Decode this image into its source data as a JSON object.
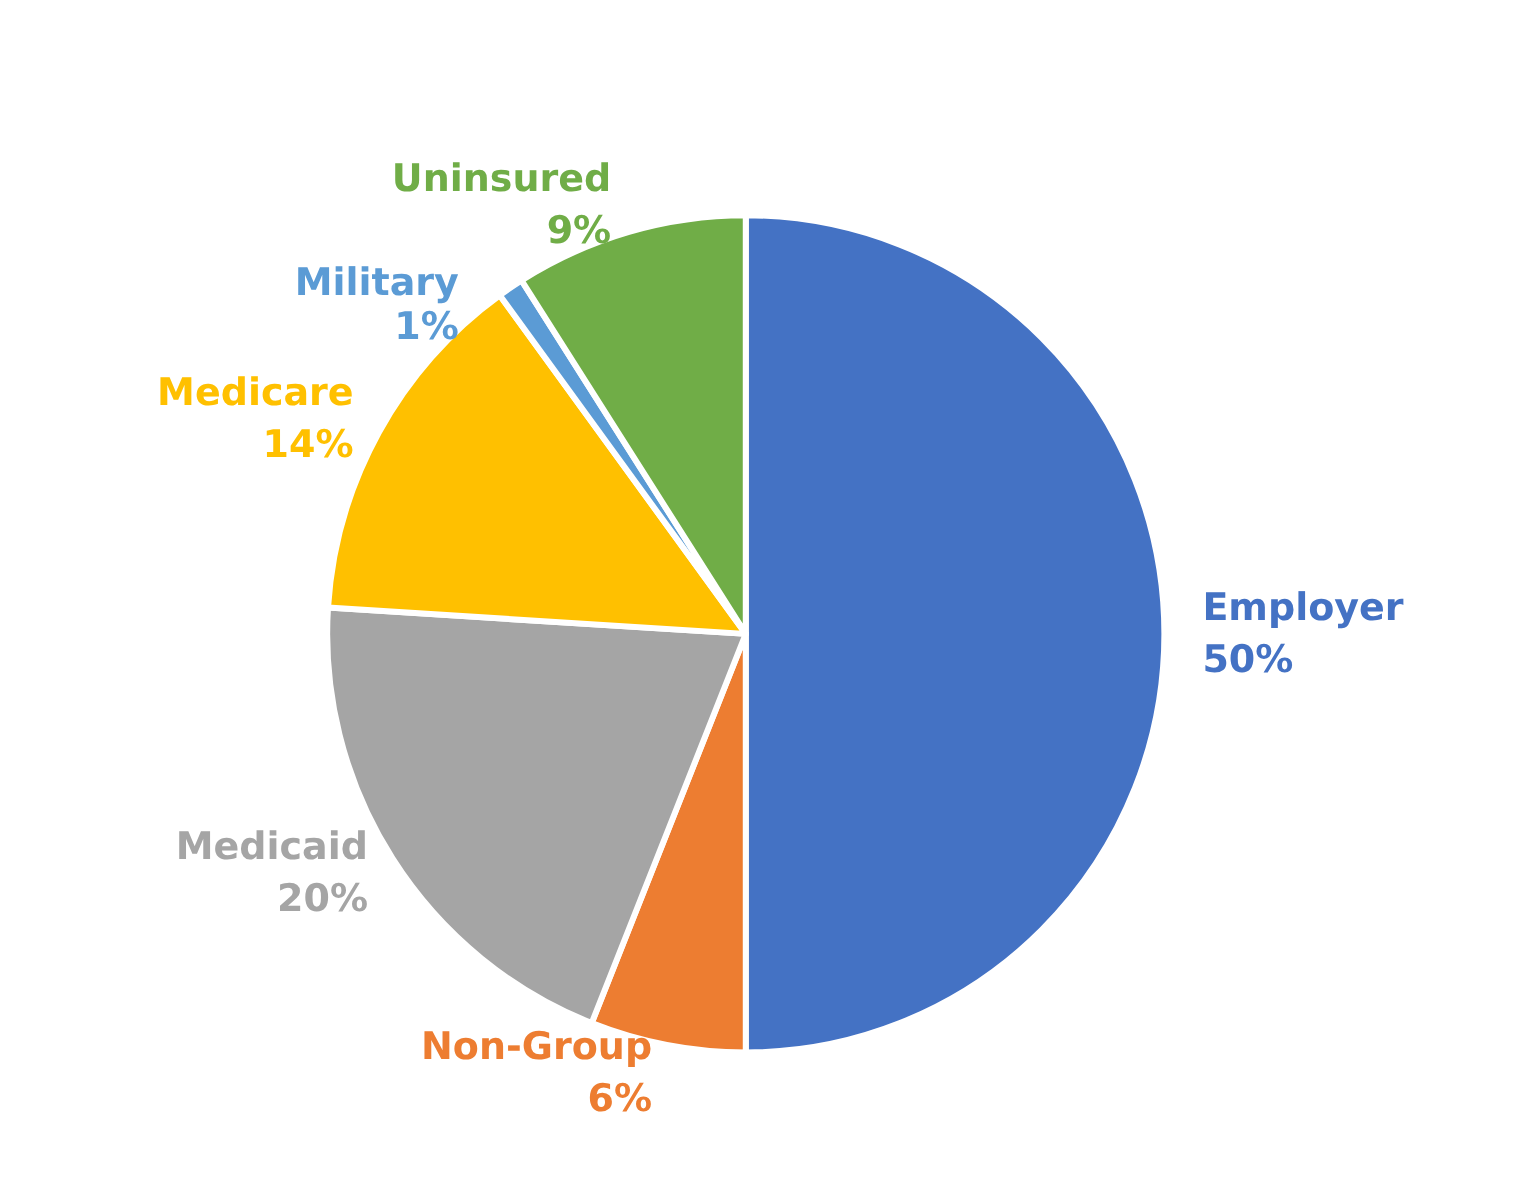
{
  "chart_data": {
    "type": "pie",
    "categories": [
      "Employer",
      "Non-Group",
      "Medicaid",
      "Medicare",
      "Military",
      "Uninsured"
    ],
    "values": [
      50,
      6,
      20,
      14,
      1,
      9
    ],
    "value_labels": [
      "50%",
      "6%",
      "20%",
      "14%",
      "1%",
      "9%"
    ],
    "colors": [
      "#4472c4",
      "#ed7d31",
      "#a5a5a5",
      "#ffc000",
      "#5b9bd5",
      "#70ad47"
    ],
    "legend": false
  }
}
